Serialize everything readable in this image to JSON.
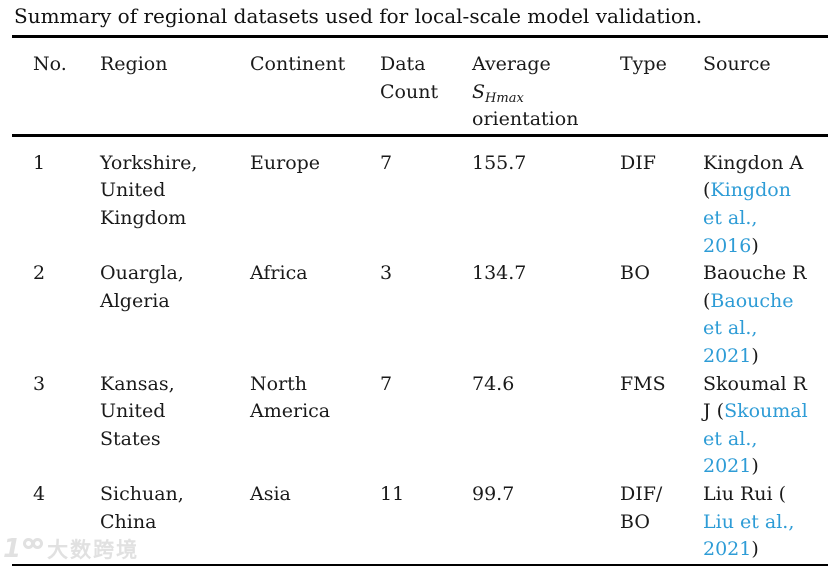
{
  "caption": "Summary of regional datasets used for local-scale model validation.",
  "colors": {
    "link_blue": "#2E9CD6",
    "text": "#1A1A1A",
    "rule": "#000000",
    "watermark_gray": "#C9C9C9"
  },
  "watermark": {
    "logo": "100",
    "text": "大数跨境"
  },
  "table": {
    "headers": {
      "no": "No.",
      "region": "Region",
      "continent": "Continent",
      "data_count": "Data\nCount",
      "average_line1": "Average",
      "average_symbol": "S",
      "average_symbol_sub": "Hmax",
      "average_line3": "orientation",
      "type": "Type",
      "source": "Source"
    },
    "rows": [
      {
        "no": "1",
        "region": "Yorkshire,\nUnited\nKingdom",
        "continent": "Europe",
        "data_count": "7",
        "average": "155.7",
        "type": "DIF",
        "source_prefix": "Kingdon A\n(",
        "source_link": "Kingdon\net al.,\n2016",
        "source_suffix": ")"
      },
      {
        "no": "2",
        "region": "Ouargla,\nAlgeria",
        "continent": "Africa",
        "data_count": "3",
        "average": "134.7",
        "type": "BO",
        "source_prefix": "Baouche R\n(",
        "source_link": "Baouche\net al.,\n2021",
        "source_suffix": ")"
      },
      {
        "no": "3",
        "region": "Kansas,\nUnited\nStates",
        "continent": "North\nAmerica",
        "data_count": "7",
        "average": "74.6",
        "type": "FMS",
        "source_prefix": "Skoumal R\nJ (",
        "source_link": "Skoumal\net al.,\n2021",
        "source_suffix": ")"
      },
      {
        "no": "4",
        "region": "Sichuan,\nChina",
        "continent": "Asia",
        "data_count": "11",
        "average": "99.7",
        "type": "DIF/\nBO",
        "source_prefix": "Liu Rui (",
        "source_link": "\nLiu et al.,\n2021",
        "source_suffix": ")"
      }
    ]
  }
}
